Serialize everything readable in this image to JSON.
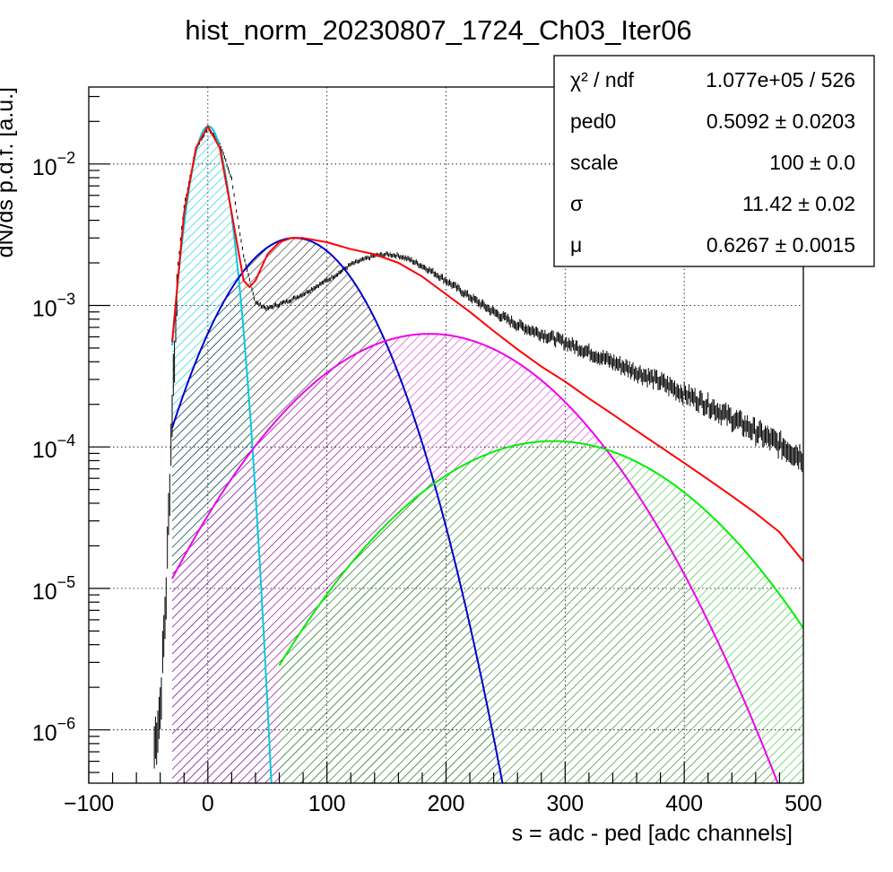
{
  "chart_data": {
    "type": "histogram",
    "title": "hist_norm_20230807_1724_Ch03_Iter06",
    "xlabel": "s = adc - ped [adc channels]",
    "ylabel": "dN/ds p.d.f. [a.u.]",
    "xlim": [
      -100,
      500
    ],
    "ylim": [
      4.2e-07,
      0.035
    ],
    "yscale": "log",
    "grid": true,
    "x_ticks": [
      "−100",
      "0",
      "100",
      "200",
      "300",
      "400",
      "500"
    ],
    "y_ticks": [
      {
        "base": "10",
        "exp": "−6"
      },
      {
        "base": "10",
        "exp": "−5"
      },
      {
        "base": "10",
        "exp": "−4"
      },
      {
        "base": "10",
        "exp": "−3"
      },
      {
        "base": "10",
        "exp": "−2"
      }
    ],
    "stats_box": {
      "position": "top-right",
      "rows": [
        {
          "name": "χ² / ndf",
          "value": "1.077e+05 / 526"
        },
        {
          "name": "ped0",
          "value": "0.5092 ± 0.0203"
        },
        {
          "name": "scale",
          "value": "100 ± 0.0"
        },
        {
          "name": "σ",
          "value": "11.42 ± 0.02"
        },
        {
          "name": "μ",
          "value": "0.6267 ± 0.0015"
        }
      ]
    },
    "series": [
      {
        "kind": "histogram",
        "color": "#000000",
        "x": [
          -45,
          -40,
          -35,
          -30,
          -25,
          -20,
          -10,
          0,
          10,
          20,
          30,
          40,
          50,
          60,
          70,
          80,
          90,
          100,
          110,
          120,
          130,
          140,
          150,
          160,
          170,
          180,
          190,
          200,
          220,
          240,
          260,
          280,
          300,
          320,
          340,
          360,
          380,
          400,
          420,
          440,
          460,
          480,
          500
        ],
        "y": [
          8e-07,
          1.5e-06,
          1e-05,
          0.0002,
          0.002,
          0.005,
          0.013,
          0.018,
          0.014,
          0.0078,
          0.0022,
          0.00105,
          0.00095,
          0.00102,
          0.0011,
          0.0012,
          0.00135,
          0.0015,
          0.0017,
          0.00195,
          0.0021,
          0.00225,
          0.0023,
          0.00225,
          0.0021,
          0.0019,
          0.0017,
          0.0015,
          0.00115,
          0.0009,
          0.00073,
          0.00063,
          0.00055,
          0.00047,
          0.0004,
          0.00034,
          0.00029,
          0.00024,
          0.0002,
          0.00016,
          0.00013,
          0.000105,
          8.5e-05
        ]
      },
      {
        "kind": "fit",
        "color": "#ff0000",
        "x": [
          -30,
          -20,
          -10,
          0,
          10,
          20,
          30,
          35,
          40,
          50,
          60,
          70,
          80,
          100,
          120,
          140,
          160,
          180,
          200,
          220,
          240,
          260,
          280,
          300,
          320,
          340,
          360,
          380,
          400,
          420,
          440,
          460,
          480,
          500
        ],
        "y": [
          0.00055,
          0.0045,
          0.013,
          0.0185,
          0.013,
          0.0045,
          0.0015,
          0.00135,
          0.0015,
          0.0023,
          0.0028,
          0.003,
          0.003,
          0.0028,
          0.0025,
          0.0023,
          0.002,
          0.0016,
          0.0012,
          0.0009,
          0.00066,
          0.00049,
          0.00037,
          0.00029,
          0.00022,
          0.00017,
          0.00013,
          0.0001,
          7.7e-05,
          5.9e-05,
          4.5e-05,
          3.4e-05,
          2.5e-05,
          1.55e-05
        ]
      },
      {
        "kind": "component",
        "color": "#00ccdd",
        "fill": "#00ccdd",
        "center": 0.5,
        "sigma": 11.42,
        "peak": 0.0185,
        "xmin": -30,
        "xmax": 55
      },
      {
        "kind": "component",
        "color": "#0000cc",
        "fill": "#000000",
        "center": 73,
        "sigma": 41.4,
        "peak": 0.003,
        "xmin": -30,
        "xmax": 320
      },
      {
        "kind": "component",
        "color": "#ee00ee",
        "fill": "#cc00cc",
        "center": 186,
        "sigma": 76.5,
        "peak": 0.00063,
        "xmin": -30,
        "xmax": 500
      },
      {
        "kind": "component",
        "color": "#00ee00",
        "fill": "#00bb00",
        "center": 290,
        "sigma": 85.1,
        "peak": 0.00011,
        "xmin": 60,
        "xmax": 500
      }
    ]
  }
}
